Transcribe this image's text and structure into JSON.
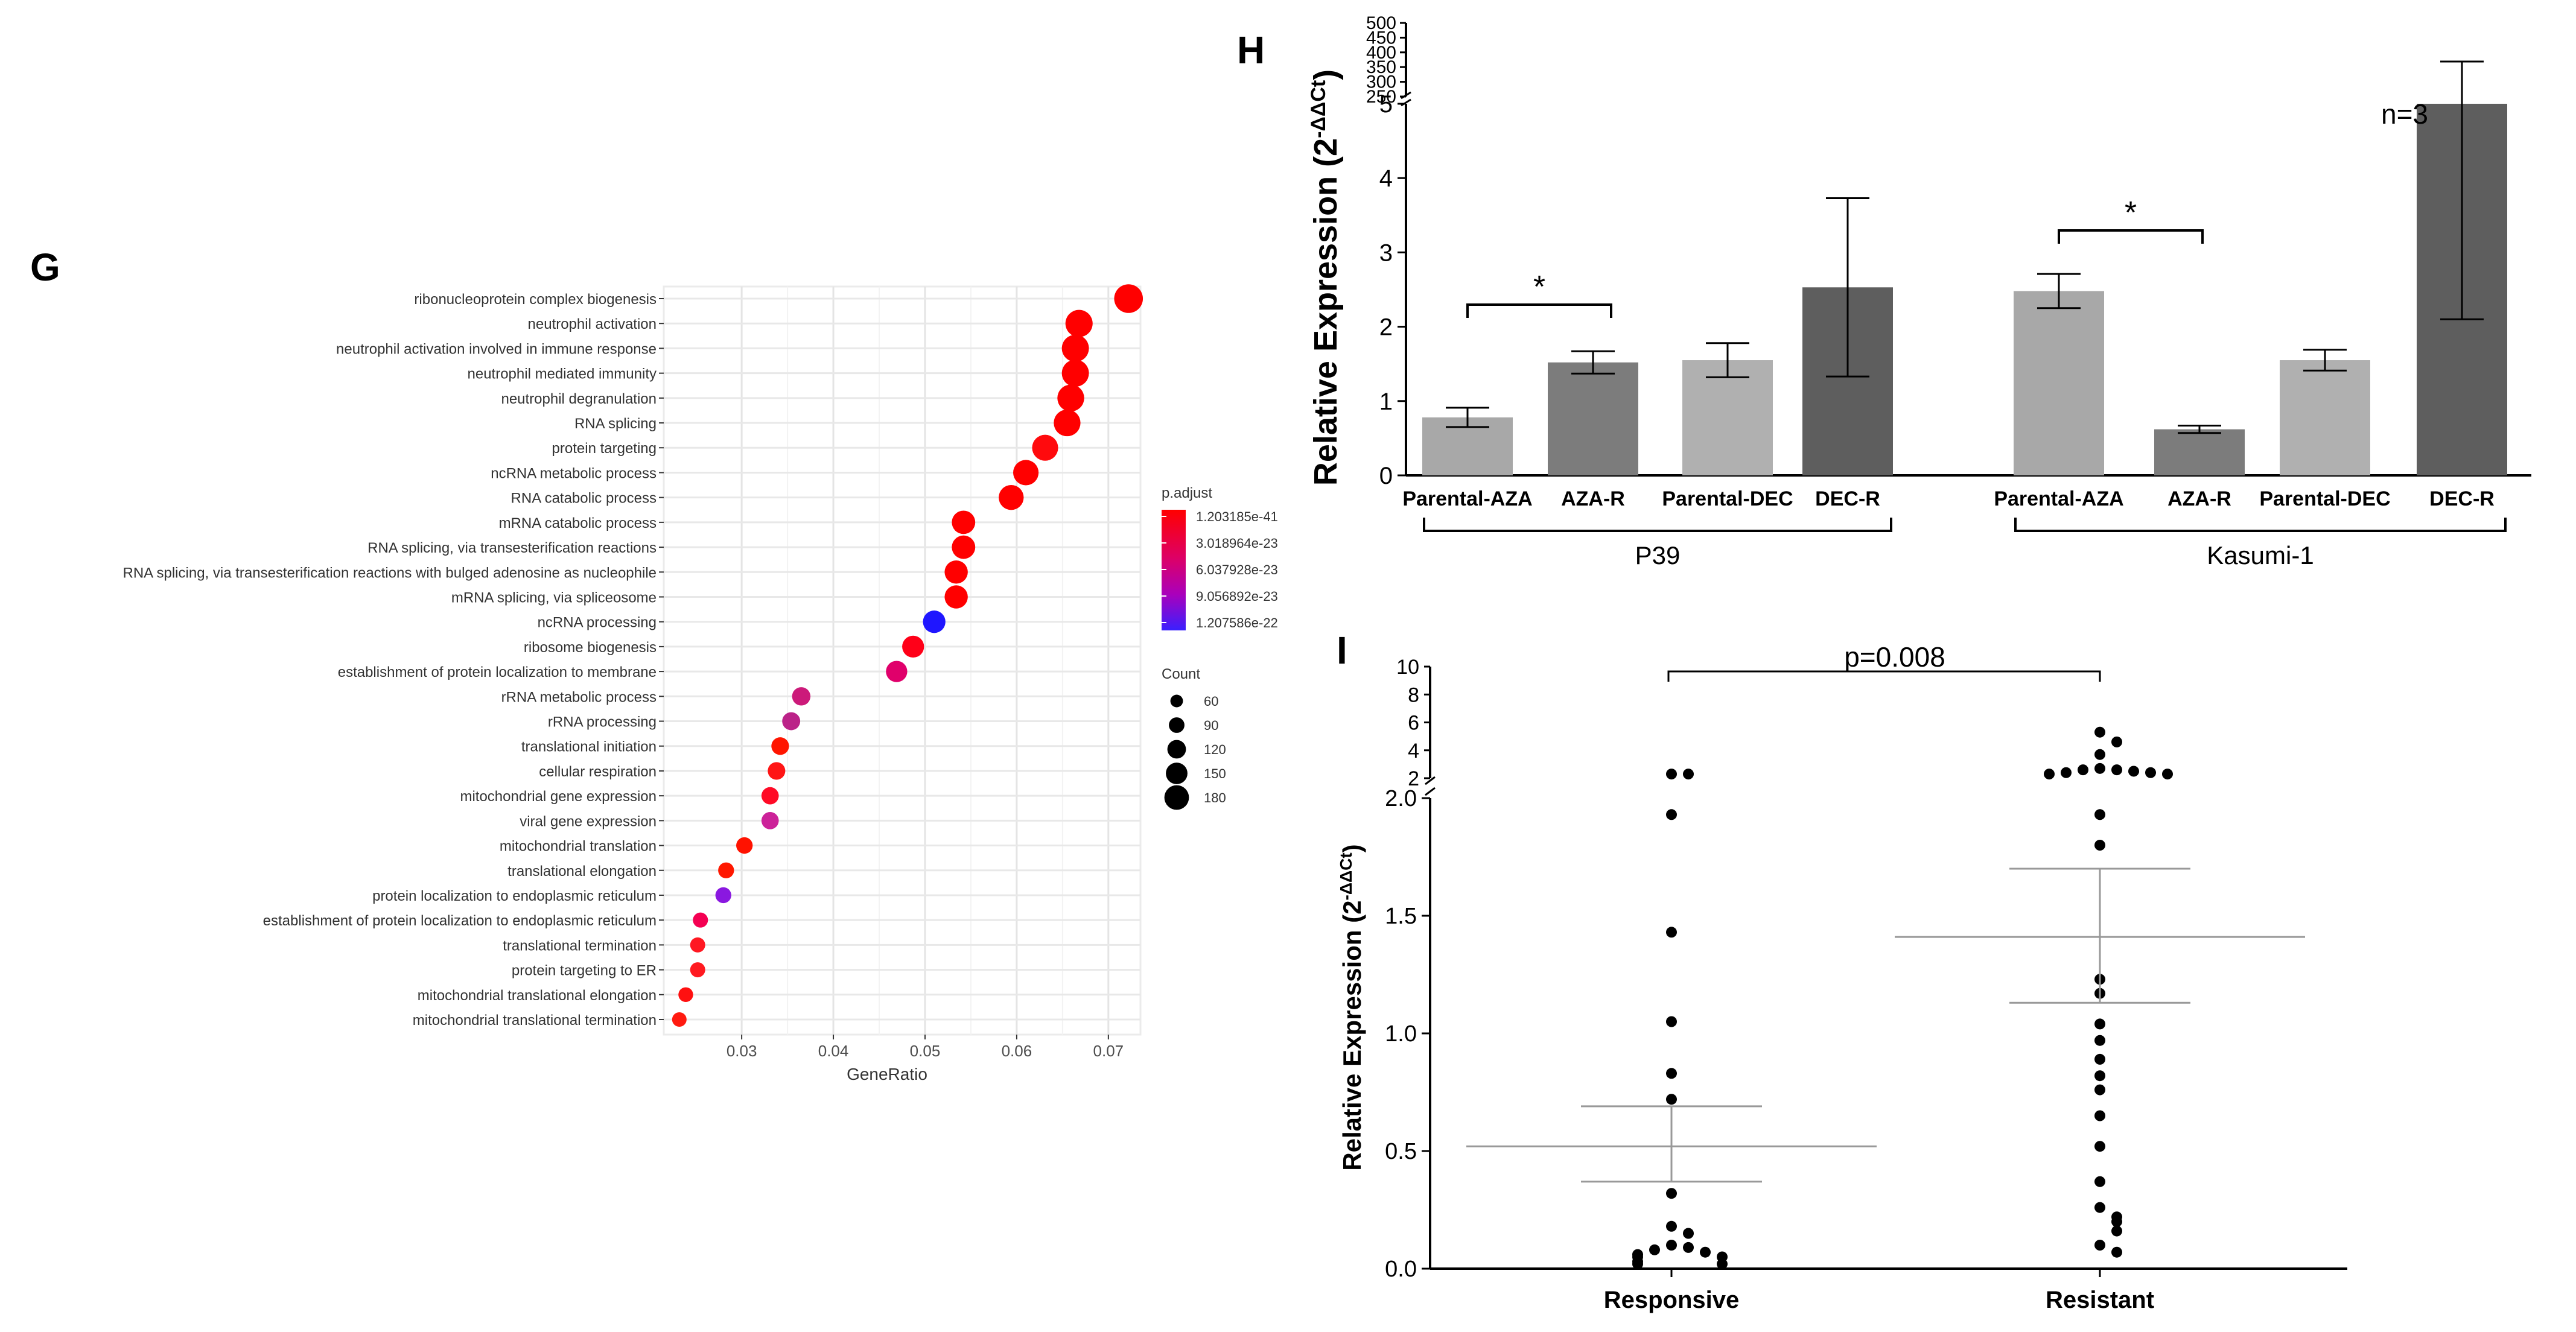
{
  "panel_labels": {
    "G": "G",
    "H": "H",
    "I": "I"
  },
  "chart_data": [
    {
      "panel": "G",
      "type": "scatter",
      "xlabel": "GeneRatio",
      "xlim": [
        0.0215,
        0.0735
      ],
      "xticks": [
        0.03,
        0.04,
        0.05,
        0.06,
        0.07
      ],
      "xtick_labels": [
        "0.03",
        "0.04",
        "0.05",
        "0.06",
        "0.07"
      ],
      "grid": true,
      "terms": [
        "ribonucleoprotein complex biogenesis",
        "neutrophil activation",
        "neutrophil activation involved in immune response",
        "neutrophil mediated immunity",
        "neutrophil degranulation",
        "RNA splicing",
        "protein targeting",
        "ncRNA metabolic process",
        "RNA catabolic process",
        "mRNA catabolic process",
        "RNA splicing, via transesterification reactions",
        "RNA splicing, via transesterification reactions with bulged adenosine as nucleophile",
        "mRNA splicing, via spliceosome",
        "ncRNA processing",
        "ribosome biogenesis",
        "establishment of protein localization to membrane",
        "rRNA metabolic process",
        "rRNA processing",
        "translational initiation",
        "cellular respiration",
        "mitochondrial gene expression",
        "viral gene expression",
        "mitochondrial translation",
        "translational elongation",
        "protein localization to endoplasmic reticulum",
        "establishment of protein localization to endoplasmic reticulum",
        "translational termination",
        "protein targeting to ER",
        "mitochondrial translational elongation",
        "mitochondrial translational termination"
      ],
      "gene_ratio": [
        0.0722,
        0.0668,
        0.0664,
        0.0664,
        0.0659,
        0.0655,
        0.0631,
        0.061,
        0.0594,
        0.0542,
        0.0542,
        0.0534,
        0.0534,
        0.051,
        0.0487,
        0.0469,
        0.0365,
        0.0354,
        0.0342,
        0.0338,
        0.0331,
        0.0331,
        0.0303,
        0.0283,
        0.028,
        0.0255,
        0.0252,
        0.0252,
        0.0239,
        0.0232
      ],
      "count": [
        178,
        165,
        164,
        164,
        162,
        161,
        155,
        150,
        146,
        133,
        133,
        131,
        131,
        125,
        120,
        115,
        90,
        87,
        84,
        83,
        81,
        81,
        74,
        69,
        69,
        62,
        62,
        62,
        59,
        57
      ],
      "p_adjust_color": [
        "#ff0000",
        "#ff0000",
        "#ff0000",
        "#ff0000",
        "#ff0000",
        "#ff0000",
        "#ff0a0d",
        "#ff0000",
        "#ff0000",
        "#ff0000",
        "#ff0000",
        "#ff0000",
        "#ff0000",
        "#1f16ff",
        "#ff0018",
        "#e0006b",
        "#cc1a7a",
        "#bb2288",
        "#ff1500",
        "#ff1515",
        "#ff0a26",
        "#cc2299",
        "#ff1200",
        "#ff1800",
        "#8a18e0",
        "#f40052",
        "#ff1822",
        "#ff1a20",
        "#ff1010",
        "#ff1a10"
      ],
      "legend_color": {
        "title": "p.adjust",
        "labels": [
          "1.203185e-41",
          "3.018964e-23",
          "6.037928e-23",
          "9.056892e-23",
          "1.207586e-22"
        ],
        "colors": [
          "#ff0000",
          "#dd0055",
          "#bb00aa",
          "#8800dd",
          "#3a20ff"
        ]
      },
      "legend_size": {
        "title": "Count",
        "labels": [
          "60",
          "90",
          "120",
          "150",
          "180"
        ],
        "values": [
          60,
          90,
          120,
          150,
          180
        ]
      }
    },
    {
      "panel": "H",
      "type": "bar",
      "ylabel_main": "Relative  Expression (2",
      "ylabel_sup": "-ΔΔCt",
      "ylabel_close": ")",
      "ylim": [
        0,
        5
      ],
      "yticks": [
        0,
        1,
        2,
        3,
        4,
        5
      ],
      "ytick_labels": [
        "0",
        "1",
        "2",
        "3",
        "4",
        "5"
      ],
      "ylim_upper": [
        250,
        500
      ],
      "yticks_upper": [
        250,
        300,
        350,
        400,
        450,
        500
      ],
      "ytick_labels_upper": [
        "250",
        "300",
        "350",
        "400",
        "450",
        "500"
      ],
      "annotation": "n=3",
      "significance_marker": "*",
      "significance_pairs": [
        [
          "Parental-AZA",
          "AZA-R",
          "P39"
        ],
        [
          "Parental-AZA",
          "AZA-R",
          "Kasumi-1"
        ]
      ],
      "groups": [
        {
          "name": "P39",
          "categories": [
            "Parental-AZA",
            "AZA-R",
            "Parental-DEC",
            "DEC-R"
          ],
          "values": [
            0.78,
            1.52,
            1.55,
            2.53
          ],
          "errors": [
            0.13,
            0.15,
            0.23,
            1.2
          ]
        },
        {
          "name": "Kasumi-1",
          "categories": [
            "Parental-AZA",
            "AZA-R",
            "Parental-DEC",
            "DEC-R"
          ],
          "values": [
            2.48,
            0.62,
            1.55,
            5.0
          ],
          "errors": [
            0.23,
            0.05,
            0.14,
            2.9
          ]
        }
      ]
    },
    {
      "panel": "I",
      "type": "scatter",
      "ylabel_main": "Relative  Expression (2",
      "ylabel_sup": "-ΔΔCt",
      "ylabel_close": ")",
      "ylim": [
        0,
        2.0
      ],
      "yticks": [
        0,
        0.5,
        1.0,
        1.5,
        2.0
      ],
      "ytick_labels": [
        "0.0",
        "0.5",
        "1.0",
        "1.5",
        "2.0"
      ],
      "ylim_upper": [
        2,
        10
      ],
      "yticks_upper": [
        2,
        4,
        6,
        8,
        10
      ],
      "ytick_labels_upper": [
        "2",
        "4",
        "6",
        "8",
        "10"
      ],
      "categories": [
        "Responsive",
        "Resistant"
      ],
      "annotation": "p=0.008",
      "groups": [
        {
          "name": "Responsive",
          "mean": 0.52,
          "sem_upper": 0.69,
          "sem_lower": 0.37,
          "points": [
            2.3,
            2.3,
            1.93,
            1.43,
            1.05,
            0.83,
            0.72,
            0.32,
            0.18,
            0.15,
            0.1,
            0.09,
            0.08,
            0.07,
            0.06,
            0.05,
            0.05,
            0.03,
            0.02,
            0.02
          ]
        },
        {
          "name": "Resistant",
          "mean": 1.41,
          "sem_upper": 1.7,
          "sem_lower": 1.13,
          "points": [
            5.3,
            4.6,
            3.7,
            2.7,
            2.6,
            2.6,
            2.5,
            2.4,
            2.4,
            2.3,
            2.3,
            1.93,
            1.8,
            1.23,
            1.17,
            1.04,
            0.97,
            0.89,
            0.82,
            0.76,
            0.65,
            0.52,
            0.37,
            0.26,
            0.22,
            0.2,
            0.16,
            0.1,
            0.07
          ]
        }
      ]
    }
  ]
}
